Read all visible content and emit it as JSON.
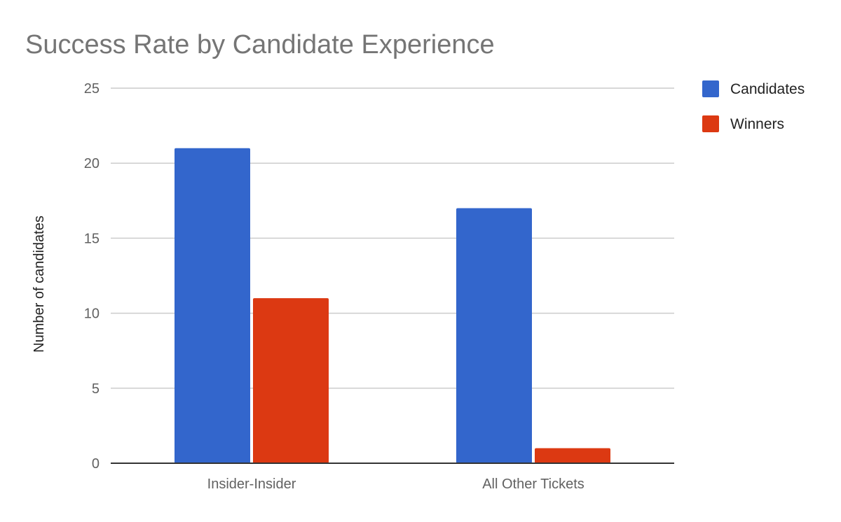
{
  "chart_data": {
    "type": "bar",
    "title": "Success Rate by Candidate Experience",
    "xlabel": "",
    "ylabel": "Number of candidates",
    "categories": [
      "Insider-Insider",
      "All Other Tickets"
    ],
    "series": [
      {
        "name": "Candidates",
        "values": [
          21,
          17
        ],
        "color": "#3366cc"
      },
      {
        "name": "Winners",
        "values": [
          11,
          1
        ],
        "color": "#dc3912"
      }
    ],
    "ylim": [
      0,
      25
    ],
    "yticks": [
      0,
      5,
      10,
      15,
      20,
      25
    ],
    "grid": true,
    "legend_position": "right"
  }
}
